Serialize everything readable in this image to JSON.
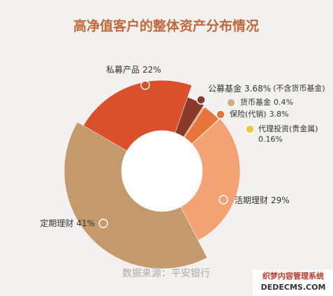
{
  "chart_data": {
    "type": "pie",
    "title": "高净值客户的整体资产分布情况",
    "categories": [
      "私募产品",
      "公募基金",
      "货币基金",
      "保险(代销)",
      "代理投资(贵金属)",
      "活期理财",
      "定期理财"
    ],
    "values": [
      22,
      3.68,
      0.4,
      3.8,
      0.16,
      29,
      41
    ],
    "value_labels": [
      "22%",
      "3.68%",
      "0.4%",
      "3.8%",
      "0.16%",
      "29%",
      "41%"
    ],
    "notes": [
      null,
      "(不含货币基金)",
      null,
      null,
      null,
      null,
      null
    ],
    "colors": [
      "#d9502a",
      "#8b3a2a",
      "#d6ab7e",
      "#e8743a",
      "#f5c24a",
      "#f2a273",
      "#c49a6c"
    ],
    "source": "数据来源：平安银行",
    "watermark": [
      "织梦内容管理系统",
      "DEDECMS.COM"
    ]
  }
}
